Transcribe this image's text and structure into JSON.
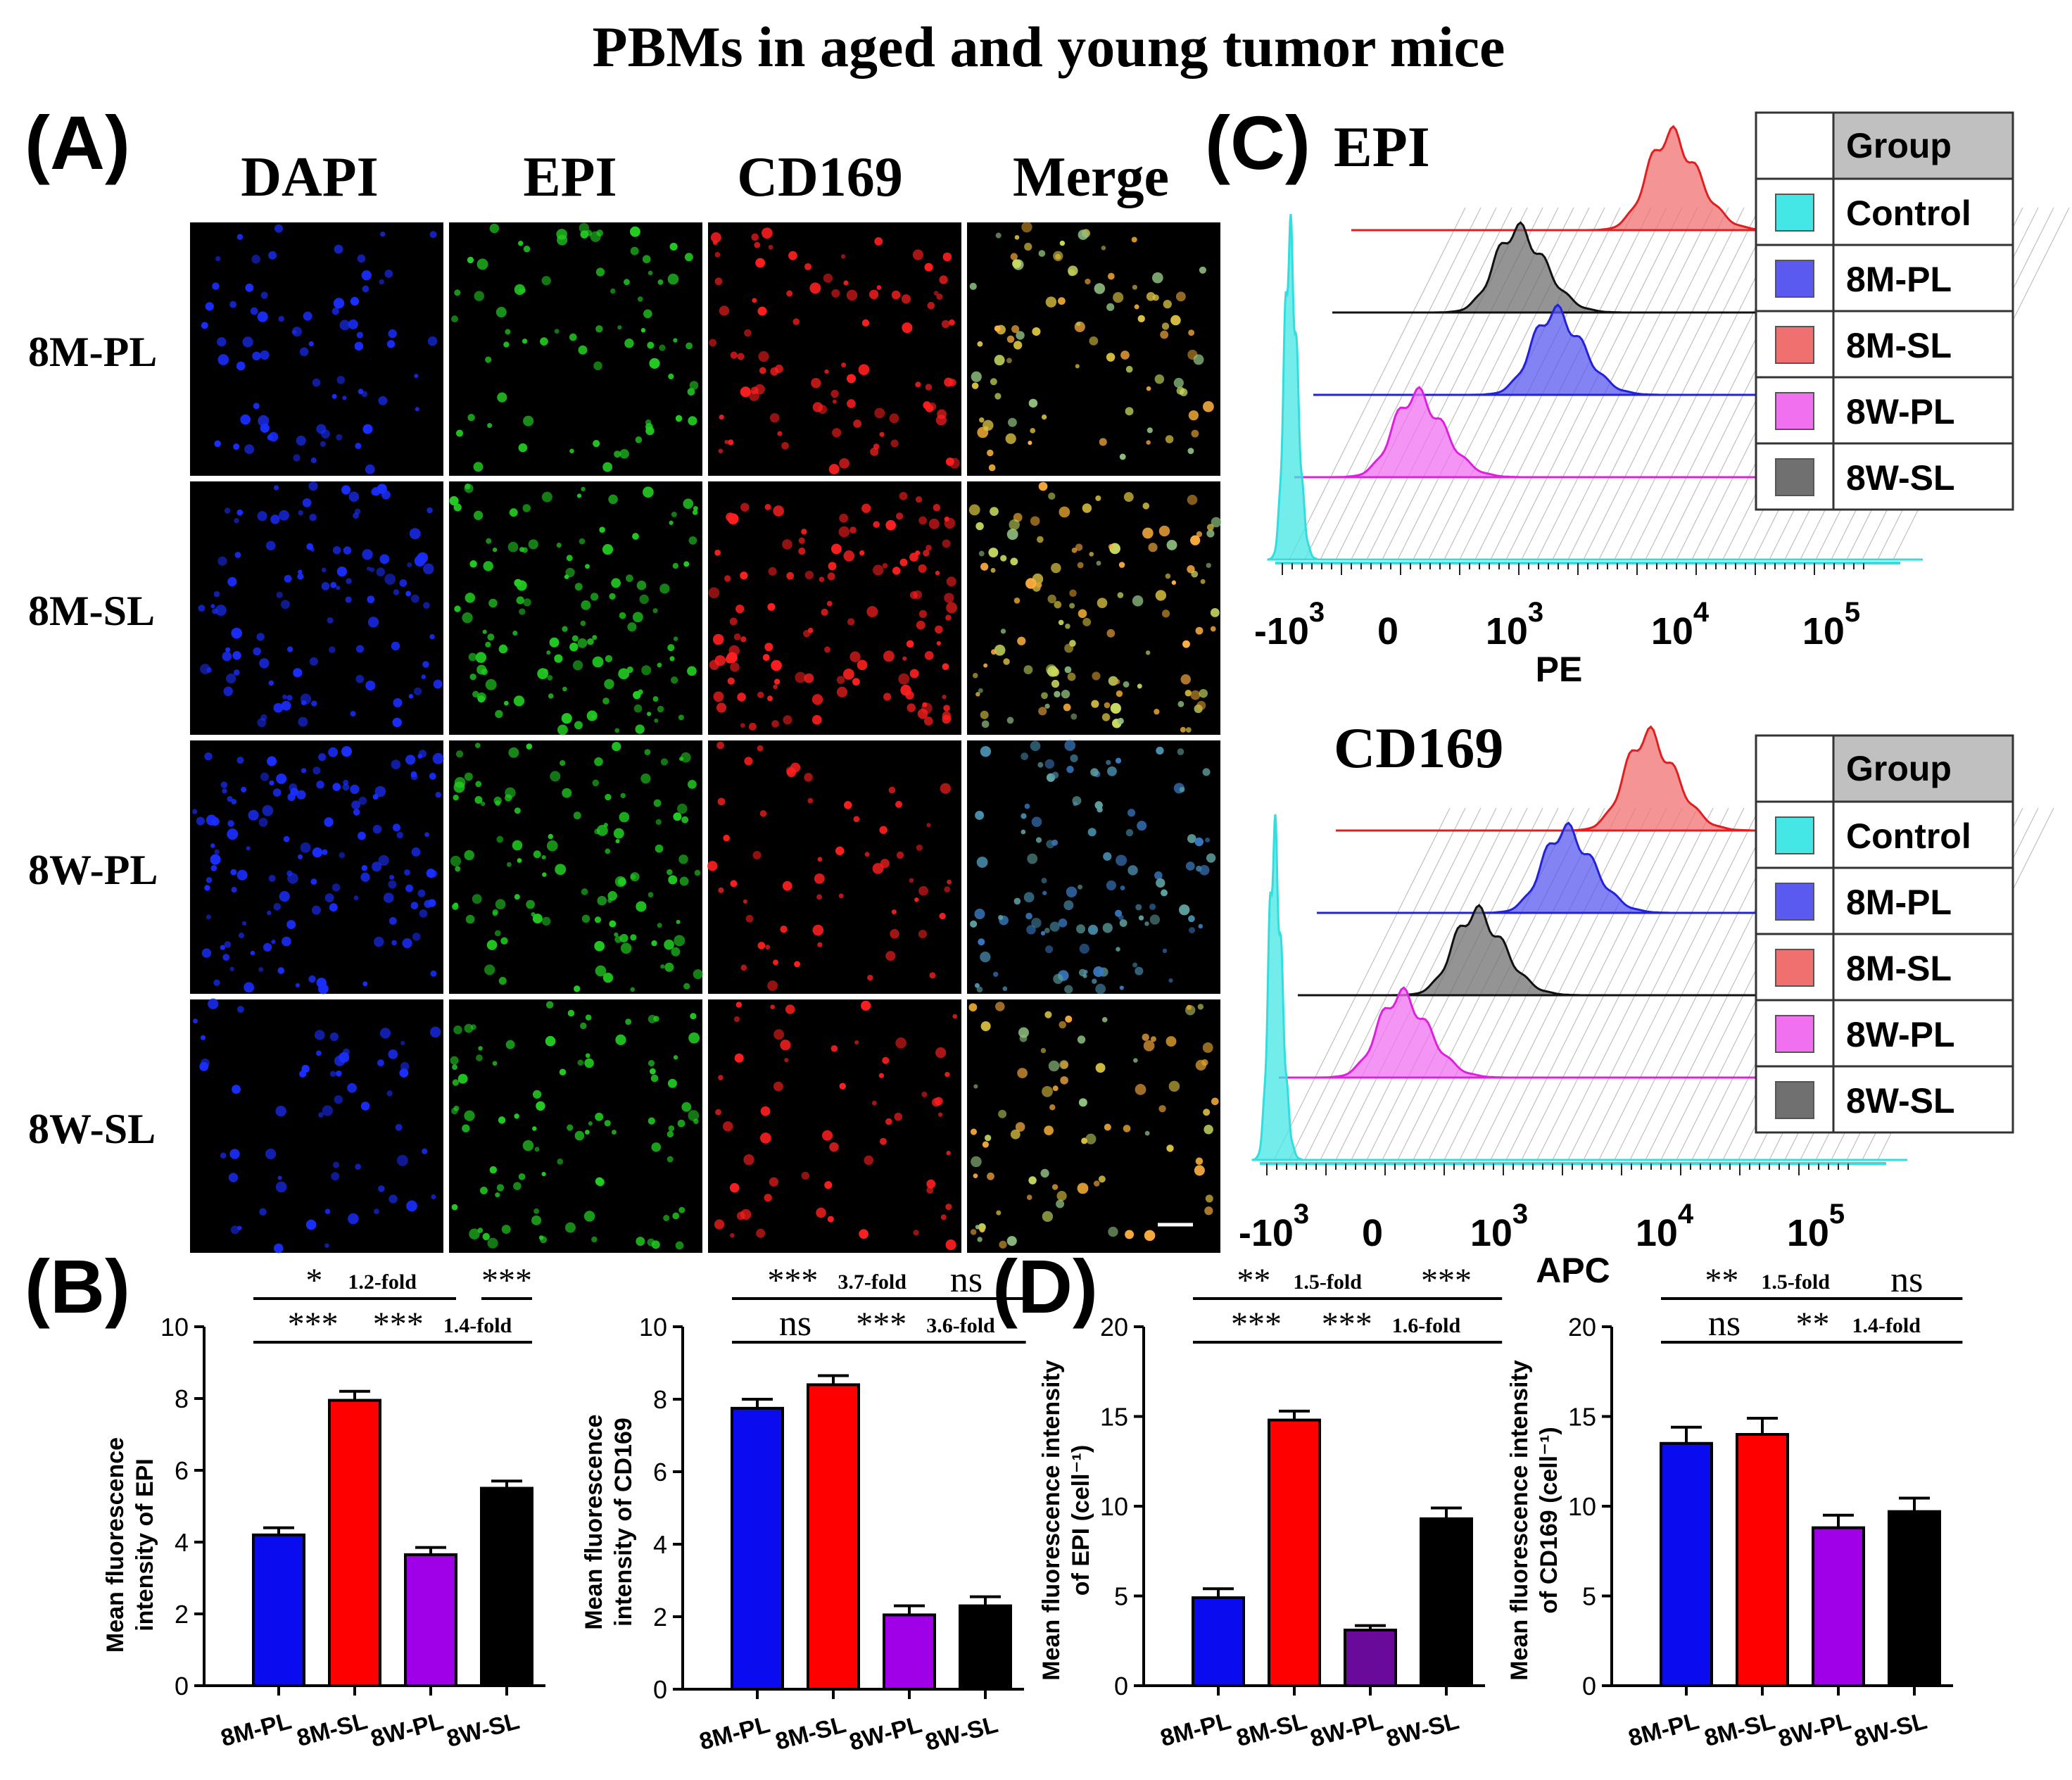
{
  "title": "PBMs in aged and young tumor mice",
  "panelA": {
    "label": "(A)",
    "columns": [
      "DAPI",
      "EPI",
      "CD169",
      "Merge"
    ],
    "rows": [
      "8M-PL",
      "8M-SL",
      "8W-PL",
      "8W-SL"
    ],
    "channel_colors": [
      "#1a2eff",
      "#22cc22",
      "#ff1f1f",
      "merge"
    ],
    "cell_density": [
      [
        0.45,
        0.45,
        0.55,
        0.55
      ],
      [
        0.65,
        0.75,
        0.75,
        0.75
      ],
      [
        0.8,
        0.7,
        0.35,
        0.7
      ],
      [
        0.35,
        0.55,
        0.35,
        0.5
      ]
    ]
  },
  "panelB": {
    "label": "(B)"
  },
  "panelC": {
    "label": "(C)",
    "legend_title": "Group",
    "legend_items": [
      {
        "label": "Control",
        "color": "#44e6e6"
      },
      {
        "label": "8M-PL",
        "color": "#5a5af0"
      },
      {
        "label": "8M-SL",
        "color": "#f07070"
      },
      {
        "label": "8W-PL",
        "color": "#f070f0"
      },
      {
        "label": "8W-SL",
        "color": "#707070"
      }
    ],
    "x_ticks": [
      {
        "base": "-10",
        "exp": "3"
      },
      {
        "base": "0",
        "exp": ""
      },
      {
        "base": "10",
        "exp": "3"
      },
      {
        "base": "10",
        "exp": "4"
      },
      {
        "base": "10",
        "exp": "5"
      }
    ],
    "plots": [
      {
        "title": "EPI",
        "xlabel": "PE"
      },
      {
        "title": "CD169",
        "xlabel": "APC"
      }
    ]
  },
  "panelD": {
    "label": "(D)"
  },
  "chart_data": [
    {
      "type": "bar",
      "categories": [
        "8M-PL",
        "8M-SL",
        "8W-PL",
        "8W-SL"
      ],
      "values": [
        4.2,
        7.95,
        3.65,
        5.5
      ],
      "errors": [
        0.2,
        0.25,
        0.2,
        0.2
      ],
      "colors": [
        "#0b0bf0",
        "#ff0000",
        "#a000e8",
        "#000000"
      ],
      "ylabel": [
        "Mean fluorescence",
        "intensity of EPI"
      ],
      "ylim": [
        0,
        10
      ],
      "yticks": [
        0,
        2,
        4,
        6,
        8,
        10
      ],
      "annotations": [
        {
          "from": 0,
          "to": 2,
          "level": 2,
          "stars": "*",
          "fold": "1.2-fold"
        },
        {
          "from": 3,
          "to": 3,
          "level": 2,
          "stars": "***",
          "fold": ""
        },
        {
          "from": 0,
          "to": 0.9,
          "level": 1,
          "stars": "***",
          "fold": ""
        },
        {
          "from": 1.15,
          "to": 3,
          "level": 1,
          "stars": "***",
          "fold": "1.4-fold"
        }
      ]
    },
    {
      "type": "bar",
      "categories": [
        "8M-PL",
        "8M-SL",
        "8W-PL",
        "8W-SL"
      ],
      "values": [
        7.75,
        8.4,
        2.05,
        2.3
      ],
      "errors": [
        0.25,
        0.25,
        0.25,
        0.25
      ],
      "colors": [
        "#0b0bf0",
        "#ff0000",
        "#a000e8",
        "#000000"
      ],
      "ylabel": [
        "Mean fluorescence",
        "intensity of CD169"
      ],
      "ylim": [
        0,
        10
      ],
      "yticks": [
        0,
        2,
        4,
        6,
        8,
        10
      ],
      "annotations": [
        {
          "from": 0,
          "to": 2,
          "level": 2,
          "stars": "***",
          "fold": "3.7-fold"
        },
        {
          "from": 2.3,
          "to": 3.2,
          "level": 2,
          "stars": "ns",
          "fold": ""
        },
        {
          "from": 0,
          "to": 1,
          "level": 1,
          "stars": "ns",
          "fold": ""
        },
        {
          "from": 1.15,
          "to": 3.2,
          "level": 1,
          "stars": "***",
          "fold": "3.6-fold"
        }
      ]
    },
    {
      "type": "bar",
      "categories": [
        "8M-PL",
        "8M-SL",
        "8W-PL",
        "8W-SL"
      ],
      "values": [
        4.9,
        14.8,
        3.1,
        9.3
      ],
      "errors": [
        0.5,
        0.5,
        0.25,
        0.6
      ],
      "colors": [
        "#0b0bf0",
        "#ff0000",
        "#6a0a9a",
        "#000000"
      ],
      "ylabel": [
        "Mean fluorescence intensity",
        "of EPI (cell⁻¹)"
      ],
      "ylim": [
        0,
        20
      ],
      "yticks": [
        0,
        5,
        10,
        15,
        20
      ],
      "annotations": [
        {
          "from": 0,
          "to": 2,
          "level": 2,
          "stars": "**",
          "fold": "1.5-fold"
        },
        {
          "from": 2.6,
          "to": 3.4,
          "level": 2,
          "stars": "***",
          "fold": ""
        },
        {
          "from": 0,
          "to": 1,
          "level": 1,
          "stars": "***",
          "fold": ""
        },
        {
          "from": 1.15,
          "to": 3.4,
          "level": 1,
          "stars": "***",
          "fold": "1.6-fold"
        }
      ]
    },
    {
      "type": "bar",
      "categories": [
        "8M-PL",
        "8M-SL",
        "8W-PL",
        "8W-SL"
      ],
      "values": [
        13.5,
        14.0,
        8.8,
        9.7
      ],
      "errors": [
        0.9,
        0.9,
        0.7,
        0.75
      ],
      "colors": [
        "#0b0bf0",
        "#ff0000",
        "#a000e8",
        "#000000"
      ],
      "ylabel": [
        "Mean fluorescence intensity",
        "of CD169 (cell⁻¹)"
      ],
      "ylim": [
        0,
        20
      ],
      "yticks": [
        0,
        5,
        10,
        15,
        20
      ],
      "annotations": [
        {
          "from": 0,
          "to": 2,
          "level": 2,
          "stars": "**",
          "fold": "1.5-fold"
        },
        {
          "from": 2.5,
          "to": 3.3,
          "level": 2,
          "stars": "ns",
          "fold": ""
        },
        {
          "from": 0,
          "to": 1,
          "level": 1,
          "stars": "ns",
          "fold": ""
        },
        {
          "from": 1.15,
          "to": 3.3,
          "level": 1,
          "stars": "**",
          "fold": "1.4-fold"
        }
      ]
    }
  ]
}
